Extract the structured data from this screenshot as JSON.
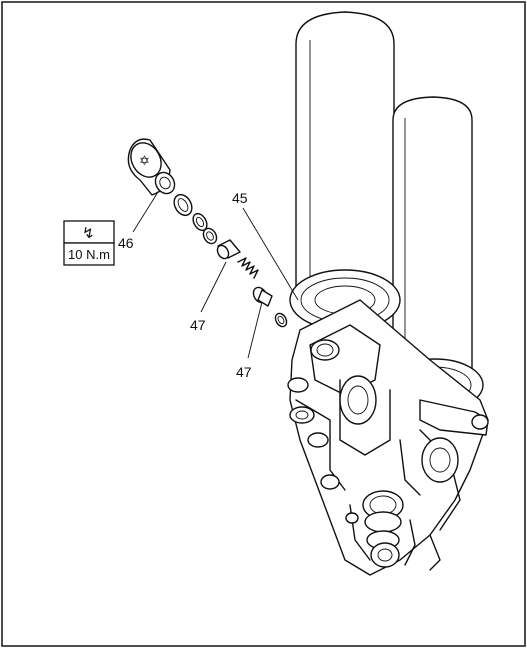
{
  "callouts": {
    "c45": "45",
    "c46": "46",
    "c47a": "47",
    "c47b": "47"
  },
  "torque_box": {
    "symbol": "↯",
    "value": "10 N.m"
  },
  "icons": {
    "torque": "torque-lightning-icon"
  }
}
